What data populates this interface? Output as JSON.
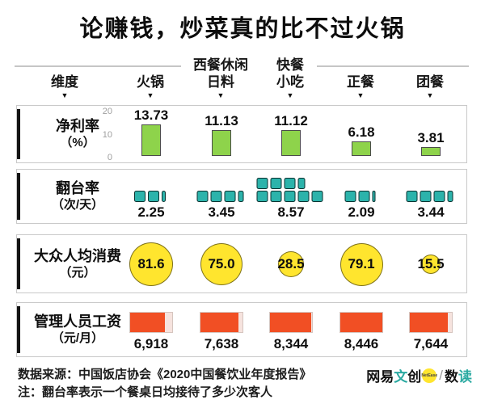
{
  "title": "论赚钱，炒菜真的比不过火锅",
  "header": {
    "dimension": "维度",
    "marker": "▼",
    "columns": [
      {
        "lines": [
          "火锅"
        ]
      },
      {
        "lines": [
          "西餐休闲",
          "日料"
        ]
      },
      {
        "lines": [
          "快餐",
          "小吃"
        ]
      },
      {
        "lines": [
          "正餐"
        ]
      },
      {
        "lines": [
          "团餐"
        ]
      }
    ]
  },
  "rows": [
    {
      "label_line1": "净利率",
      "label_line2": "（%）"
    },
    {
      "label_line1": "翻台率",
      "label_line2": "（次/天）"
    },
    {
      "label_line1": "大众人均消费",
      "label_line2": "（元）"
    },
    {
      "label_line1": "管理人员工资",
      "label_line2": "（元/月）"
    }
  ],
  "chart_data": [
    {
      "type": "bar",
      "title": "净利率（%）",
      "categories": [
        "火锅",
        "西餐休闲日料",
        "快餐小吃",
        "正餐",
        "团餐"
      ],
      "values": [
        13.73,
        11.13,
        11.12,
        6.18,
        3.81
      ],
      "labels": [
        "13.73",
        "11.13",
        "11.12",
        "6.18",
        "3.81"
      ],
      "ylim": [
        0,
        20
      ],
      "yticks": [
        20,
        10,
        0
      ],
      "color": "#8ed34b"
    },
    {
      "type": "unit",
      "title": "翻台率（次/天）",
      "categories": [
        "火锅",
        "西餐休闲日料",
        "快餐小吃",
        "正餐",
        "团餐"
      ],
      "values": [
        2.25,
        3.45,
        8.57,
        2.09,
        3.44
      ],
      "labels": [
        "2.25",
        "3.45",
        "8.57",
        "2.09",
        "3.44"
      ],
      "units_per_row": 5,
      "color": "#2cb3ab"
    },
    {
      "type": "bubble",
      "title": "大众人均消费（元）",
      "categories": [
        "火锅",
        "西餐休闲日料",
        "快餐小吃",
        "正餐",
        "团餐"
      ],
      "values": [
        81.6,
        75.0,
        28.5,
        79.1,
        15.5
      ],
      "labels": [
        "81.6",
        "75.0",
        "28.5",
        "79.1",
        "15.5"
      ],
      "color": "#ffe52e"
    },
    {
      "type": "hbar",
      "title": "管理人员工资（元/月）",
      "categories": [
        "火锅",
        "西餐休闲日料",
        "快餐小吃",
        "正餐",
        "团餐"
      ],
      "values": [
        6918,
        7638,
        8344,
        8446,
        7644
      ],
      "labels": [
        "6,918",
        "7,638",
        "8,344",
        "8,446",
        "7,644"
      ],
      "max": 8446,
      "color": "#f14f24",
      "track_color": "#f6e3de"
    }
  ],
  "footer": {
    "source": "数据来源：中国饭店协会《2020中国餐饮业年度报告》",
    "note": "注：翻台率表示一个餐桌日均接待了多少次客人",
    "logo": {
      "part1": "网易",
      "part2": "文",
      "part3": "创",
      "badge": "NetEase",
      "slash": "/",
      "part4": "数",
      "part5": "读"
    }
  },
  "colors": {
    "green": "#8ed34b",
    "teal": "#2cb3ab",
    "yellow": "#ffe52e",
    "red": "#f14f24",
    "red_track": "#f6e3de",
    "accent": "#141414",
    "axis_gray": "#9e9e9e",
    "divider_gray": "#c6c6c6",
    "logo_teal": "#2aa9a1",
    "logo_yellow": "#ffe52e"
  }
}
